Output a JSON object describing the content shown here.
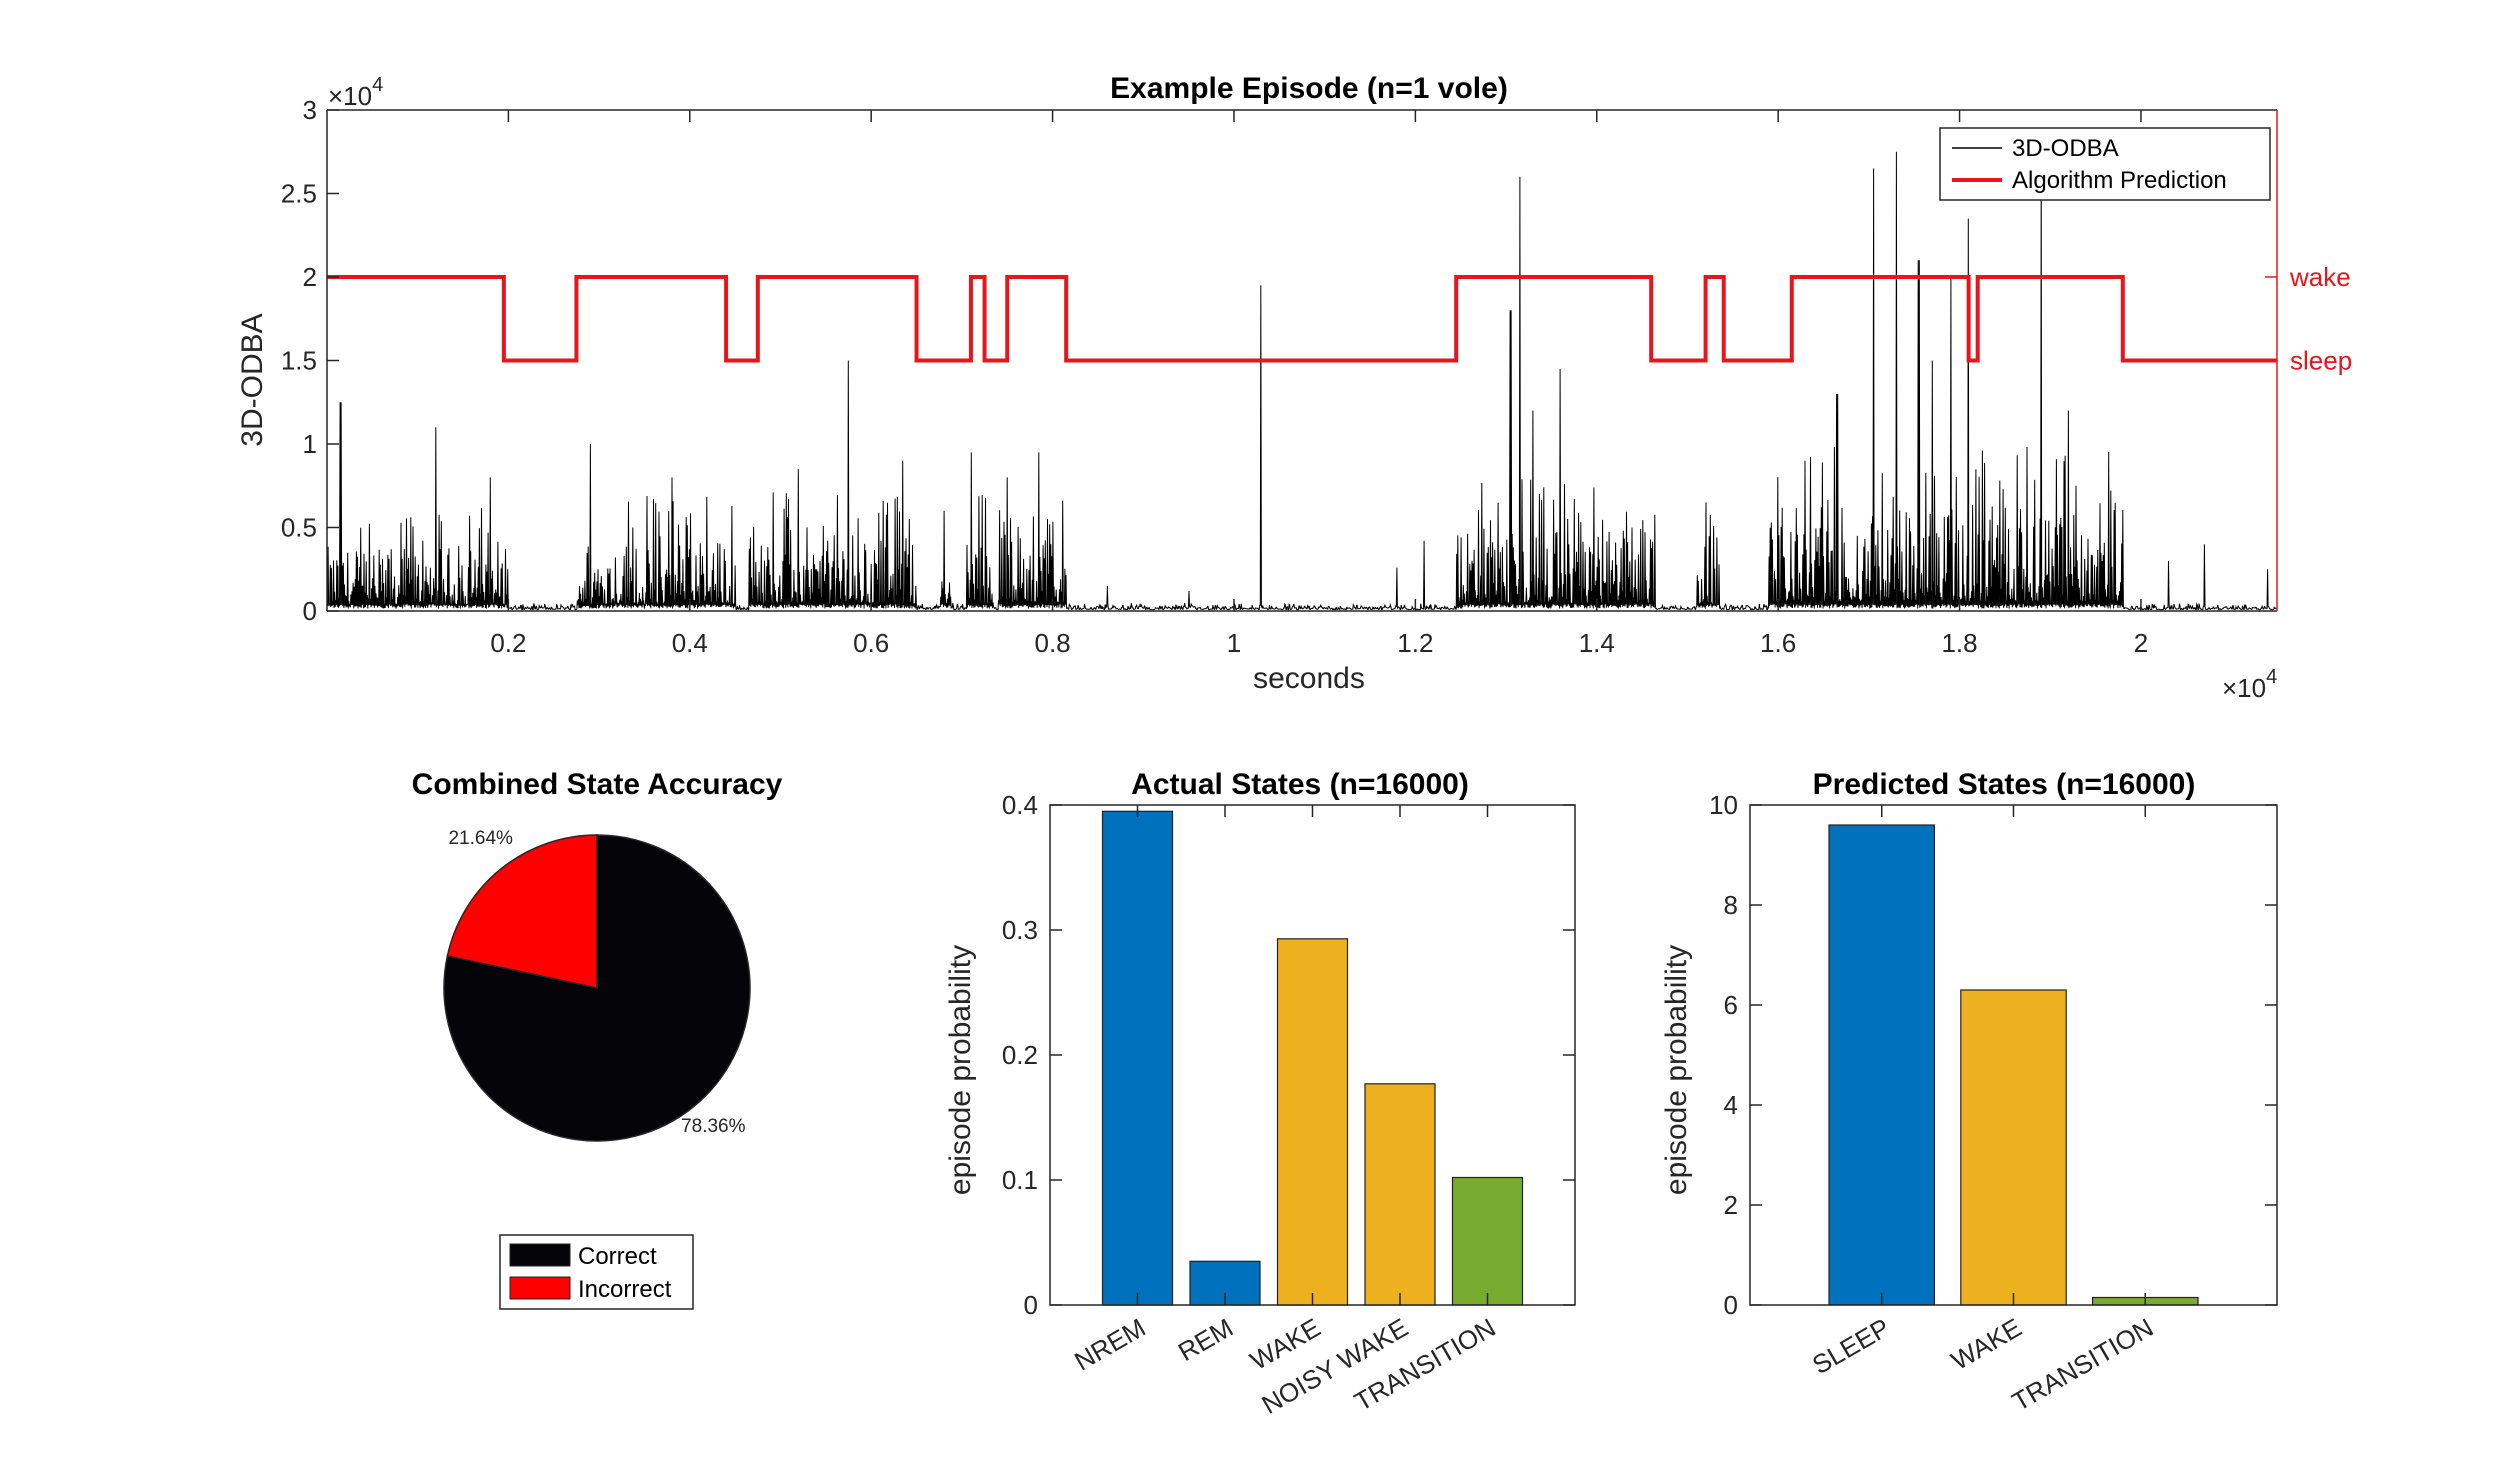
{
  "chart_data": [
    {
      "type": "line",
      "title": "Example Episode (n=1 vole)",
      "xlabel": "seconds",
      "ylabel": "3D-ODBA",
      "x_exponent_label": "×10",
      "x_exponent_power": "4",
      "y_exponent_label": "×10",
      "y_exponent_power": "4",
      "xlim": [
        0,
        21500
      ],
      "ylim": [
        0,
        30000
      ],
      "x_ticks": [
        {
          "value": 2000,
          "label": "0.2"
        },
        {
          "value": 4000,
          "label": "0.4"
        },
        {
          "value": 6000,
          "label": "0.6"
        },
        {
          "value": 8000,
          "label": "0.8"
        },
        {
          "value": 10000,
          "label": "1"
        },
        {
          "value": 12000,
          "label": "1.2"
        },
        {
          "value": 14000,
          "label": "1.4"
        },
        {
          "value": 16000,
          "label": "1.6"
        },
        {
          "value": 18000,
          "label": "1.8"
        },
        {
          "value": 20000,
          "label": "2"
        }
      ],
      "y_ticks": [
        {
          "value": 0,
          "label": "0"
        },
        {
          "value": 5000,
          "label": "0.5"
        },
        {
          "value": 10000,
          "label": "1"
        },
        {
          "value": 15000,
          "label": "1.5"
        },
        {
          "value": 20000,
          "label": "2"
        },
        {
          "value": 25000,
          "label": "2.5"
        },
        {
          "value": 30000,
          "label": "3"
        }
      ],
      "right_axis_ticks": [
        {
          "value": 20000,
          "label": "wake"
        },
        {
          "value": 15000,
          "label": "sleep"
        }
      ],
      "legend_position": "top-right",
      "series": [
        {
          "name": "3D-ODBA",
          "color": "#000000",
          "active_segments": [
            {
              "start": 0,
              "end": 2000,
              "level": 2500,
              "peaks": [
                [
                  150,
                  12500
                ],
                [
                  1200,
                  11000
                ],
                [
                  1800,
                  8000
                ]
              ]
            },
            {
              "start": 2750,
              "end": 4500,
              "level": 2800,
              "peaks": [
                [
                  2900,
                  10000
                ],
                [
                  3800,
                  8000
                ]
              ]
            },
            {
              "start": 4650,
              "end": 6500,
              "level": 3000,
              "peaks": [
                [
                  5750,
                  15000
                ],
                [
                  6350,
                  9000
                ],
                [
                  5200,
                  8500
                ]
              ]
            },
            {
              "start": 6750,
              "end": 6900,
              "level": 1500,
              "peaks": [
                [
                  6800,
                  6000
                ]
              ]
            },
            {
              "start": 7050,
              "end": 7350,
              "level": 3000,
              "peaks": [
                [
                  7100,
                  9500
                ]
              ]
            },
            {
              "start": 7400,
              "end": 8150,
              "level": 3500,
              "peaks": [
                [
                  7850,
                  9500
                ],
                [
                  7500,
                  8000
                ]
              ]
            },
            {
              "start": 12450,
              "end": 14650,
              "level": 3200,
              "peaks": [
                [
                  13150,
                  26000
                ],
                [
                  13050,
                  18000
                ],
                [
                  13600,
                  14500
                ],
                [
                  13300,
                  12000
                ]
              ]
            },
            {
              "start": 15100,
              "end": 15350,
              "level": 2500,
              "peaks": [
                [
                  15200,
                  6500
                ]
              ]
            },
            {
              "start": 15900,
              "end": 19800,
              "level": 4000,
              "peaks": [
                [
                  17050,
                  26500
                ],
                [
                  17300,
                  27500
                ],
                [
                  17550,
                  21000
                ],
                [
                  17900,
                  20000
                ],
                [
                  18100,
                  23500
                ],
                [
                  18900,
                  27000
                ],
                [
                  17700,
                  15000
                ],
                [
                  16650,
                  13000
                ],
                [
                  19200,
                  12000
                ],
                [
                  16300,
                  9000
                ]
              ]
            }
          ],
          "spikes": [
            [
              10300,
              19500
            ],
            [
              12100,
              4200
            ],
            [
              11800,
              2600
            ],
            [
              9500,
              1200
            ],
            [
              20700,
              4000
            ],
            [
              21400,
              2500
            ],
            [
              20300,
              3000
            ],
            [
              8600,
              1500
            ]
          ]
        },
        {
          "name": "Algorithm Prediction",
          "color": "#e8161c",
          "steps": [
            [
              0,
              20000
            ],
            [
              1950,
              15000
            ],
            [
              2750,
              20000
            ],
            [
              4400,
              15000
            ],
            [
              4750,
              20000
            ],
            [
              6500,
              15000
            ],
            [
              7100,
              20000
            ],
            [
              7250,
              15000
            ],
            [
              7500,
              20000
            ],
            [
              8150,
              15000
            ],
            [
              12450,
              20000
            ],
            [
              14600,
              15000
            ],
            [
              15200,
              20000
            ],
            [
              15400,
              15000
            ],
            [
              16150,
              20000
            ],
            [
              18100,
              15000
            ],
            [
              18200,
              20000
            ],
            [
              19800,
              15000
            ],
            [
              21500,
              15000
            ]
          ]
        }
      ]
    },
    {
      "type": "pie",
      "title": "Combined State Accuracy",
      "slices": [
        {
          "name": "Correct",
          "value": 78.36,
          "label": "78.36%",
          "color": "#050408"
        },
        {
          "name": "Incorrect",
          "value": 21.64,
          "label": "21.64%",
          "color": "#ff0000"
        }
      ],
      "legend_position": "bottom"
    },
    {
      "type": "bar",
      "title": "Actual States (n=16000)",
      "ylabel": "episode probability",
      "categories": [
        "NREM",
        "REM",
        "WAKE",
        "NOISY WAKE",
        "TRANSITION"
      ],
      "values": [
        0.395,
        0.035,
        0.293,
        0.177,
        0.102
      ],
      "colors": [
        "#0072bd",
        "#0072bd",
        "#edb120",
        "#edb120",
        "#77ac30"
      ],
      "ylim": [
        0,
        0.4
      ],
      "y_ticks": [
        {
          "value": 0,
          "label": "0"
        },
        {
          "value": 0.1,
          "label": "0.1"
        },
        {
          "value": 0.2,
          "label": "0.2"
        },
        {
          "value": 0.3,
          "label": "0.3"
        },
        {
          "value": 0.4,
          "label": "0.4"
        }
      ]
    },
    {
      "type": "bar",
      "title": "Predicted States (n=16000)",
      "ylabel": "episode probability",
      "categories": [
        "SLEEP",
        "WAKE",
        "TRANSITION"
      ],
      "values": [
        9.6,
        6.3,
        0.15
      ],
      "colors": [
        "#0072bd",
        "#edb120",
        "#77ac30"
      ],
      "ylim": [
        0,
        10
      ],
      "y_ticks": [
        {
          "value": 0,
          "label": "0"
        },
        {
          "value": 2,
          "label": "2"
        },
        {
          "value": 4,
          "label": "4"
        },
        {
          "value": 6,
          "label": "6"
        },
        {
          "value": 8,
          "label": "8"
        },
        {
          "value": 10,
          "label": "10"
        }
      ]
    }
  ]
}
